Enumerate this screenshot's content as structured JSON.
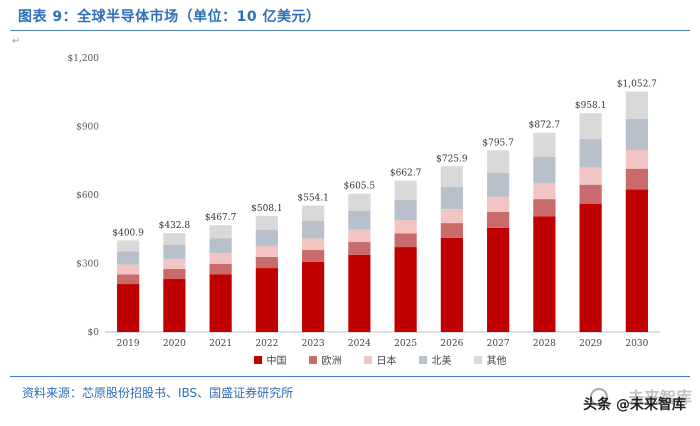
{
  "header": {
    "title": "图表 9：全球半导体市场（单位：10 亿美元）"
  },
  "footer": {
    "source": "资料来源：芯原股份招股书、IBS、国盛证券研究所",
    "watermark_text": "头条 @未来智库",
    "watermark_bg_text": "未来智库"
  },
  "chart_data": {
    "type": "bar",
    "stacked": true,
    "categories": [
      "2019",
      "2020",
      "2021",
      "2022",
      "2023",
      "2024",
      "2025",
      "2026",
      "2027",
      "2028",
      "2029",
      "2030"
    ],
    "totals": [
      400.9,
      432.8,
      467.7,
      508.1,
      554.1,
      605.5,
      662.7,
      725.9,
      795.7,
      872.7,
      958.1,
      1052.7
    ],
    "total_labels": [
      "$400.9",
      "$432.8",
      "$467.7",
      "$508.1",
      "$554.1",
      "$605.5",
      "$662.7",
      "$725.9",
      "$795.7",
      "$872.7",
      "$958.1",
      "$1,052.7"
    ],
    "series": [
      {
        "name": "中国",
        "color": "#c00000",
        "values": [
          210,
          232,
          253,
          280,
          307,
          338,
          372,
          412,
          456,
          506,
          562,
          625
        ]
      },
      {
        "name": "欧洲",
        "color": "#c96b6b",
        "values": [
          42,
          44,
          46,
          49,
          52,
          56,
          60,
          65,
          70,
          76,
          83,
          90
        ]
      },
      {
        "name": "日本",
        "color": "#f2c4c4",
        "values": [
          43,
          44,
          46,
          48,
          51,
          54,
          58,
          61,
          66,
          71,
          76,
          82
        ]
      },
      {
        "name": "北美",
        "color": "#b8c0cc",
        "values": [
          58,
          62,
          66,
          71,
          76,
          82,
          89,
          97,
          105,
          114,
          125,
          137
        ]
      },
      {
        "name": "其他",
        "color": "#d9d9d9",
        "values": [
          47.9,
          50.8,
          56.7,
          60.1,
          68.1,
          75.5,
          83.7,
          90.9,
          98.7,
          105.7,
          112.1,
          118.7
        ]
      }
    ],
    "ylim": [
      0,
      1200
    ],
    "yticks": [
      0,
      300,
      600,
      900,
      1200
    ],
    "ytick_labels": [
      "$0",
      "$300",
      "$600",
      "$900",
      "$1,200"
    ],
    "legend_position": "bottom",
    "grid": false
  }
}
